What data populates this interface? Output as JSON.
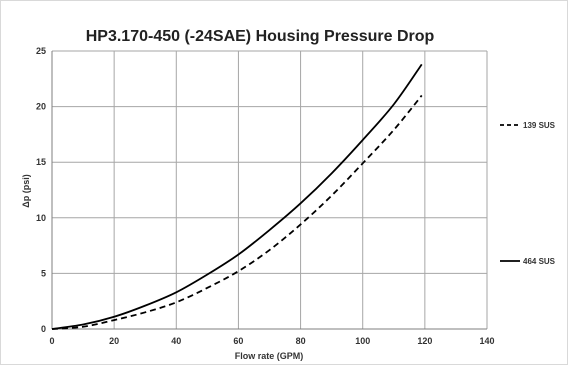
{
  "chart_data": {
    "type": "line",
    "title": "HP3.170-450 (-24SAE)  Housing Pressure Drop",
    "xlabel": "Flow rate (GPM)",
    "ylabel": "Δp (psi)",
    "xlim": [
      0,
      140
    ],
    "ylim": [
      0,
      25
    ],
    "x_ticks": [
      "0",
      "20",
      "40",
      "60",
      "80",
      "100",
      "120",
      "140"
    ],
    "y_ticks": [
      "0",
      "5",
      "10",
      "15",
      "20",
      "25"
    ],
    "grid": true,
    "legend_position": "right",
    "series": [
      {
        "name": "139 SUS",
        "style": "dashed",
        "color": "#000000",
        "x": [
          0,
          10,
          20,
          30,
          40,
          50,
          60,
          70,
          80,
          90,
          100,
          110,
          119
        ],
        "y": [
          0,
          0.2,
          0.8,
          1.5,
          2.4,
          3.7,
          5.2,
          7.1,
          9.4,
          12.0,
          14.9,
          17.9,
          21.0
        ]
      },
      {
        "name": "464 SUS",
        "style": "solid",
        "color": "#000000",
        "x": [
          0,
          10,
          20,
          30,
          40,
          50,
          60,
          70,
          80,
          90,
          100,
          110,
          119
        ],
        "y": [
          0,
          0.4,
          1.1,
          2.1,
          3.3,
          4.9,
          6.7,
          8.9,
          11.3,
          14.0,
          17.0,
          20.2,
          23.8
        ]
      }
    ]
  }
}
